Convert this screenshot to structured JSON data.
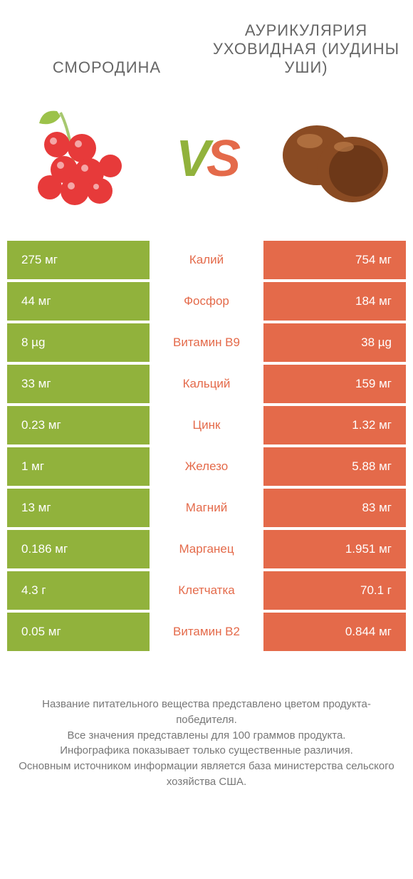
{
  "header": {
    "left": "СМОРОДИНА",
    "right": "АУРИКУЛЯРИЯ УХОВИДНАЯ (ИУДИНЫ УШИ)"
  },
  "vs": {
    "v": "V",
    "s": "S"
  },
  "colors": {
    "left": "#91b23c",
    "right": "#e46a4a",
    "text": "#666666",
    "footer": "#777777"
  },
  "rows": [
    {
      "left": "275 мг",
      "label": "Калий",
      "right": "754 мг",
      "winner": "right"
    },
    {
      "left": "44 мг",
      "label": "Фосфор",
      "right": "184 мг",
      "winner": "right"
    },
    {
      "left": "8 µg",
      "label": "Витамин B9",
      "right": "38 µg",
      "winner": "right"
    },
    {
      "left": "33 мг",
      "label": "Кальций",
      "right": "159 мг",
      "winner": "right"
    },
    {
      "left": "0.23 мг",
      "label": "Цинк",
      "right": "1.32 мг",
      "winner": "right"
    },
    {
      "left": "1 мг",
      "label": "Железо",
      "right": "5.88 мг",
      "winner": "right"
    },
    {
      "left": "13 мг",
      "label": "Магний",
      "right": "83 мг",
      "winner": "right"
    },
    {
      "left": "0.186 мг",
      "label": "Марганец",
      "right": "1.951 мг",
      "winner": "right"
    },
    {
      "left": "4.3 г",
      "label": "Клетчатка",
      "right": "70.1 г",
      "winner": "right"
    },
    {
      "left": "0.05 мг",
      "label": "Витамин B2",
      "right": "0.844 мг",
      "winner": "right"
    }
  ],
  "footer": {
    "l1": "Название питательного вещества представлено цветом продукта-победителя.",
    "l2": "Все значения представлены для 100 граммов продукта.",
    "l3": "Инфографика показывает только существенные различия.",
    "l4": "Основным источником информации является база министерства сельского хозяйства США."
  }
}
